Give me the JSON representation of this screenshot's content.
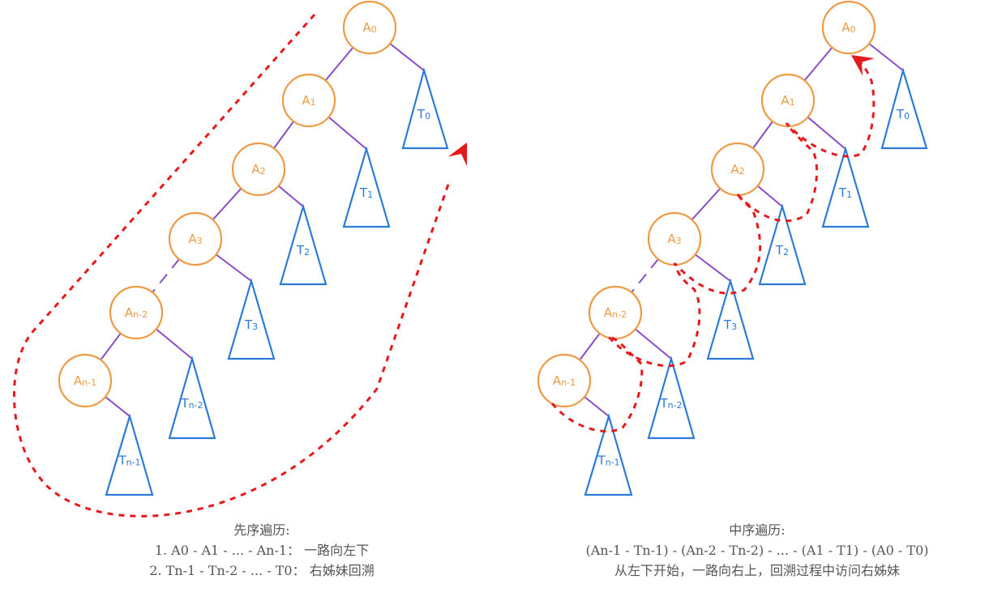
{
  "colors": {
    "node_stroke": "#ee9a45",
    "node_text": "#ee9a45",
    "edge": "#8a4cc7",
    "subtree": "#2d7bd6",
    "path": "#e41a1c",
    "caption": "#555555"
  },
  "left_diagram": {
    "nodes": [
      {
        "base": "A",
        "sub": "0"
      },
      {
        "base": "A",
        "sub": "1"
      },
      {
        "base": "A",
        "sub": "2"
      },
      {
        "base": "A",
        "sub": "3"
      },
      {
        "base": "A",
        "sub": "n-2"
      },
      {
        "base": "A",
        "sub": "n-1"
      }
    ],
    "subtrees": [
      {
        "base": "T",
        "sub": "0"
      },
      {
        "base": "T",
        "sub": "1"
      },
      {
        "base": "T",
        "sub": "2"
      },
      {
        "base": "T",
        "sub": "3"
      },
      {
        "base": "T",
        "sub": "n-2"
      },
      {
        "base": "T",
        "sub": "n-1"
      }
    ],
    "caption": {
      "title": "先序遍历:",
      "line1": "1. A0 - A1 - ... - An-1： 一路向左下",
      "line2": "2. Tn-1 - Tn-2 - ... - T0： 右姊妹回溯"
    }
  },
  "right_diagram": {
    "nodes": [
      {
        "base": "A",
        "sub": "0"
      },
      {
        "base": "A",
        "sub": "1"
      },
      {
        "base": "A",
        "sub": "2"
      },
      {
        "base": "A",
        "sub": "3"
      },
      {
        "base": "A",
        "sub": "n-2"
      },
      {
        "base": "A",
        "sub": "n-1"
      }
    ],
    "subtrees": [
      {
        "base": "T",
        "sub": "0"
      },
      {
        "base": "T",
        "sub": "1"
      },
      {
        "base": "T",
        "sub": "2"
      },
      {
        "base": "T",
        "sub": "3"
      },
      {
        "base": "T",
        "sub": "n-2"
      },
      {
        "base": "T",
        "sub": "n-1"
      }
    ],
    "caption": {
      "title": "中序遍历:",
      "line1": "(An-1 - Tn-1) - (An-2 - Tn-2) - ... - (A1 - T1) - (A0 - T0)",
      "line2": "从左下开始，一路向右上，回溯过程中访问右姊妹"
    }
  }
}
